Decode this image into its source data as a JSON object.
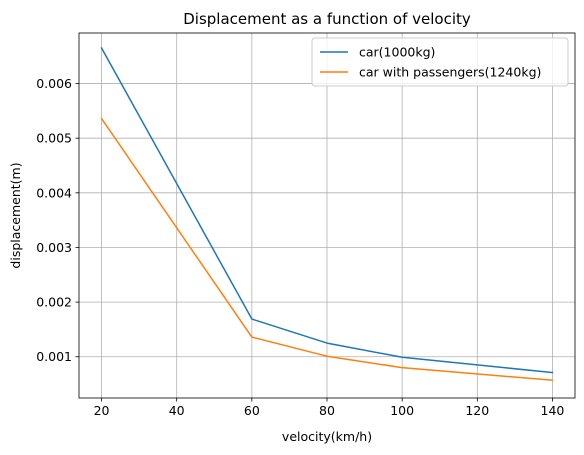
{
  "chart_data": {
    "type": "line",
    "title": "Displacement as a function of velocity",
    "xlabel": "velocity(km/h)",
    "ylabel": "displacement(m)",
    "x": [
      20,
      60,
      80,
      100,
      140
    ],
    "xlim": [
      14,
      146
    ],
    "ylim": [
      0.000245,
      0.006925
    ],
    "xticks": [
      20,
      40,
      60,
      80,
      100,
      120,
      140
    ],
    "xtick_labels": [
      "20",
      "40",
      "60",
      "80",
      "100",
      "120",
      "140"
    ],
    "yticks": [
      0.001,
      0.002,
      0.003,
      0.004,
      0.005,
      0.006
    ],
    "ytick_labels": [
      "0.001",
      "0.002",
      "0.003",
      "0.004",
      "0.005",
      "0.006"
    ],
    "grid": true,
    "legend_position": "upper-right",
    "series": [
      {
        "name": "car(1000kg)",
        "color": "#1f77b4",
        "values": [
          0.00665,
          0.00169,
          0.00125,
          0.00099,
          0.00071
        ]
      },
      {
        "name": "car with passengers(1240kg)",
        "color": "#ff7f0e",
        "values": [
          0.00536,
          0.00136,
          0.00101,
          0.0008,
          0.00057
        ]
      }
    ]
  }
}
